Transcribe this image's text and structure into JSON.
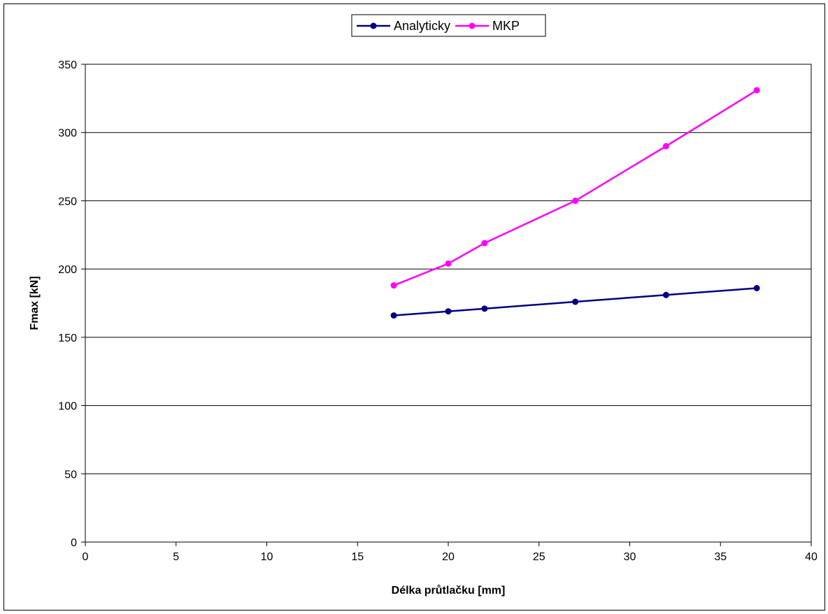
{
  "chart_data": {
    "type": "line",
    "xlabel": "Délka průtlačku [mm]",
    "ylabel": "Fmax [kN]",
    "xlim": [
      0,
      40
    ],
    "ylim": [
      0,
      350
    ],
    "x_ticks": [
      0,
      5,
      10,
      15,
      20,
      25,
      30,
      35,
      40
    ],
    "y_ticks": [
      0,
      50,
      100,
      150,
      200,
      250,
      300,
      350
    ],
    "grid": "horizontal",
    "legend_position": "top-center",
    "series": [
      {
        "name": "Analyticky",
        "color": "#000080",
        "x": [
          17,
          20,
          22,
          27,
          32,
          37
        ],
        "y": [
          166,
          169,
          171,
          176,
          181,
          186
        ]
      },
      {
        "name": "MKP",
        "color": "#FF00FF",
        "x": [
          17,
          20,
          22,
          27,
          32,
          37
        ],
        "y": [
          188,
          204,
          219,
          250,
          290,
          331
        ]
      }
    ]
  }
}
